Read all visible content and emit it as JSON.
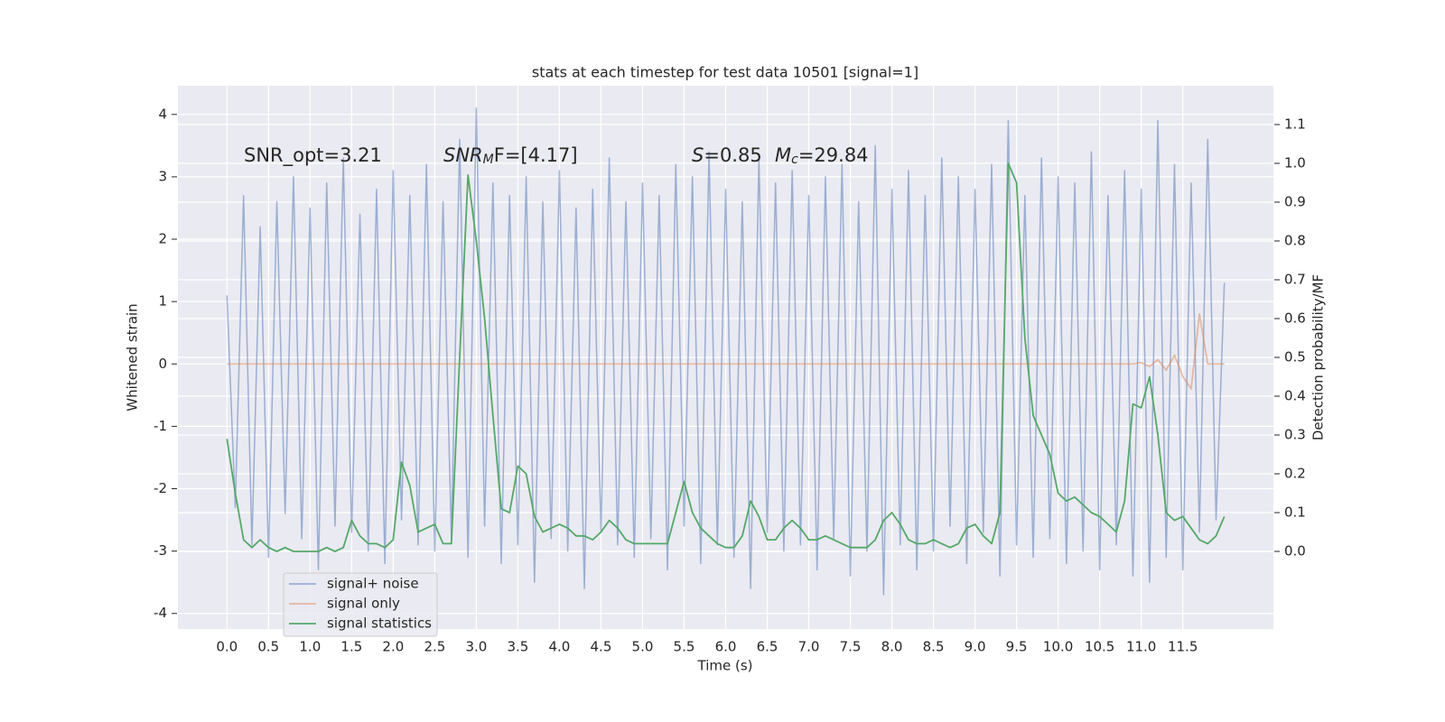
{
  "chart_data": {
    "type": "line",
    "title": "stats at each timestep for test data 10501 [signal=1]",
    "x_label": "Time (s)",
    "y_label": "Whitened strain",
    "y2_label": "Detection probability/MF",
    "xlim": [
      -0.59,
      12.59
    ],
    "ylim": [
      -4.25,
      4.46
    ],
    "y2lim": [
      -0.2,
      1.2
    ],
    "xticks": [
      {
        "value": 0,
        "label": "0.0"
      },
      0.5,
      {
        "value": 1,
        "label": "1.0"
      },
      1.5,
      {
        "value": 2,
        "label": "2.0"
      },
      2.5,
      {
        "value": 3,
        "label": "3.0"
      },
      3.5,
      {
        "value": 4,
        "label": "4.0"
      },
      4.5,
      {
        "value": 5,
        "label": "5.0"
      },
      5.5,
      {
        "value": 6,
        "label": "6.0"
      },
      6.5,
      {
        "value": 7,
        "label": "7.0"
      },
      7.5,
      {
        "value": 8,
        "label": "8.0"
      },
      8.5,
      {
        "value": 9,
        "label": "9.0"
      },
      9.5,
      {
        "value": 10,
        "label": "10.0"
      },
      10.5,
      {
        "value": 11,
        "label": "11.0"
      },
      11.5
    ],
    "yticks": [
      -4,
      -3,
      -2,
      -1,
      0,
      1,
      2,
      3,
      4
    ],
    "y2ticks": [
      {
        "value": 0,
        "label": "0.0"
      },
      0.1,
      0.2,
      0.3,
      0.4,
      0.5,
      0.6,
      0.7,
      0.8,
      0.9,
      {
        "value": 1,
        "label": "1.0"
      },
      1.1
    ],
    "grid": true,
    "legend": "lower left",
    "annotations": [
      {
        "parts": [
          "SNR_opt=3.21"
        ]
      },
      {
        "parts": [
          "SNR",
          "M",
          "F=[4.17]"
        ]
      },
      {
        "parts": [
          "S",
          "=0.85"
        ]
      },
      {
        "parts": [
          "M",
          "c",
          "=29.84"
        ]
      }
    ],
    "x": [
      0,
      0.1,
      0.2,
      0.3,
      0.4,
      0.5,
      0.6,
      0.7,
      0.8,
      0.9,
      1,
      1.1,
      1.2,
      1.3,
      1.4,
      1.5,
      1.6,
      1.7,
      1.8,
      1.9,
      2,
      2.1,
      2.2,
      2.3,
      2.4,
      2.5,
      2.6,
      2.7,
      2.8,
      2.9,
      3,
      3.1,
      3.2,
      3.3,
      3.4,
      3.5,
      3.6,
      3.7,
      3.8,
      3.9,
      4,
      4.1,
      4.2,
      4.3,
      4.4,
      4.5,
      4.6,
      4.7,
      4.8,
      4.9,
      5,
      5.1,
      5.2,
      5.3,
      5.4,
      5.5,
      5.6,
      5.7,
      5.8,
      5.9,
      6,
      6.1,
      6.2,
      6.3,
      6.4,
      6.5,
      6.6,
      6.7,
      6.8,
      6.9,
      7,
      7.1,
      7.2,
      7.3,
      7.4,
      7.5,
      7.6,
      7.7,
      7.8,
      7.9,
      8,
      8.1,
      8.2,
      8.3,
      8.4,
      8.5,
      8.6,
      8.7,
      8.8,
      8.9,
      9,
      9.1,
      9.2,
      9.3,
      9.4,
      9.5,
      9.6,
      9.7,
      9.8,
      9.9,
      10,
      10.1,
      10.2,
      10.3,
      10.4,
      10.5,
      10.6,
      10.7,
      10.8,
      10.9,
      11,
      11.1,
      11.2,
      11.3,
      11.4,
      11.5,
      11.6,
      11.7,
      11.8,
      11.9,
      12
    ],
    "series": [
      {
        "name": "signal+ noise",
        "color": "#4c72b0",
        "opacity": 0.5,
        "values": [
          1.1,
          -2.3,
          2.7,
          -2.9,
          2.2,
          -3.1,
          2.6,
          -2.4,
          3.0,
          -2.8,
          2.5,
          -3.3,
          2.9,
          -2.6,
          3.3,
          -2.7,
          2.4,
          -3.0,
          2.8,
          -3.2,
          3.1,
          -2.5,
          2.7,
          -2.9,
          3.2,
          -3.0,
          2.6,
          -2.8,
          3.6,
          -3.1,
          4.1,
          -2.6,
          2.9,
          -3.2,
          2.7,
          -2.9,
          3.0,
          -3.5,
          2.6,
          -2.8,
          3.1,
          -3.0,
          2.5,
          -3.6,
          2.8,
          -2.7,
          3.3,
          -2.9,
          2.6,
          -3.1,
          2.9,
          -2.8,
          2.7,
          -3.3,
          3.2,
          -2.6,
          3.0,
          -3.2,
          3.4,
          -2.9,
          2.8,
          -3.1,
          2.6,
          -3.6,
          3.3,
          -2.7,
          2.9,
          -3.0,
          3.1,
          -2.9,
          2.7,
          -3.3,
          3.0,
          -2.8,
          3.2,
          -3.4,
          2.6,
          -3.0,
          3.5,
          -3.7,
          2.8,
          -2.9,
          3.1,
          -3.3,
          2.7,
          -3.0,
          3.3,
          -2.6,
          3.0,
          -3.2,
          2.8,
          -2.7,
          3.2,
          -3.4,
          3.9,
          -2.9,
          2.7,
          -3.1,
          3.3,
          -2.8,
          3.0,
          -3.2,
          2.9,
          -3.0,
          3.4,
          -3.3,
          2.7,
          -2.9,
          3.1,
          -3.4,
          2.8,
          -3.5,
          3.9,
          -3.1,
          3.2,
          -3.3,
          2.9,
          -2.7,
          3.6,
          -2.5,
          1.3
        ]
      },
      {
        "name": "signal only",
        "color": "#dd8452",
        "opacity": 0.5,
        "values": [
          0,
          0,
          0,
          0,
          0,
          0,
          0,
          0,
          0,
          0,
          0,
          0,
          0,
          0,
          0,
          0,
          0,
          0,
          0,
          0,
          0,
          0,
          0,
          0,
          0,
          0,
          0,
          0,
          0,
          0,
          0,
          0,
          0,
          0,
          0,
          0,
          0,
          0,
          0,
          0,
          0,
          0,
          0,
          0,
          0,
          0,
          0,
          0,
          0,
          0,
          0,
          0,
          0,
          0,
          0,
          0,
          0,
          0,
          0,
          0,
          0,
          0,
          0,
          0,
          0,
          0,
          0,
          0,
          0,
          0,
          0,
          0,
          0,
          0,
          0,
          0,
          0,
          0,
          0,
          0,
          0,
          0,
          0,
          0,
          0,
          0,
          0,
          0,
          0,
          0,
          0,
          0,
          0,
          0,
          0,
          0,
          0,
          0,
          0,
          0,
          0,
          0,
          0,
          0,
          0,
          0,
          0,
          0,
          0,
          0,
          0.02,
          -0.04,
          0.07,
          -0.1,
          0.14,
          -0.2,
          -0.4,
          0.8,
          0,
          0,
          0
        ]
      },
      {
        "name": "signal statistics",
        "color": "#55a868",
        "opacity": 1,
        "axis": "y2",
        "values": [
          0.29,
          0.15,
          0.03,
          0.01,
          0.03,
          0.01,
          0,
          0.01,
          0,
          0,
          0,
          0,
          0.01,
          0,
          0.01,
          0.08,
          0.04,
          0.02,
          0.02,
          0.01,
          0.03,
          0.23,
          0.17,
          0.05,
          0.06,
          0.07,
          0.02,
          0.02,
          0.5,
          0.97,
          0.8,
          0.6,
          0.35,
          0.11,
          0.1,
          0.22,
          0.2,
          0.09,
          0.05,
          0.06,
          0.07,
          0.06,
          0.04,
          0.04,
          0.03,
          0.05,
          0.08,
          0.06,
          0.03,
          0.02,
          0.02,
          0.02,
          0.02,
          0.02,
          0.1,
          0.18,
          0.1,
          0.06,
          0.04,
          0.02,
          0.01,
          0.01,
          0.04,
          0.13,
          0.09,
          0.03,
          0.03,
          0.06,
          0.08,
          0.06,
          0.03,
          0.03,
          0.04,
          0.03,
          0.02,
          0.01,
          0.01,
          0.01,
          0.03,
          0.08,
          0.1,
          0.07,
          0.03,
          0.02,
          0.02,
          0.03,
          0.02,
          0.01,
          0.02,
          0.06,
          0.07,
          0.04,
          0.02,
          0.1,
          1.0,
          0.95,
          0.55,
          0.35,
          0.3,
          0.25,
          0.15,
          0.13,
          0.14,
          0.12,
          0.1,
          0.09,
          0.07,
          0.05,
          0.13,
          0.38,
          0.37,
          0.45,
          0.3,
          0.1,
          0.08,
          0.09,
          0.06,
          0.03,
          0.02,
          0.04,
          0.09
        ]
      }
    ]
  }
}
